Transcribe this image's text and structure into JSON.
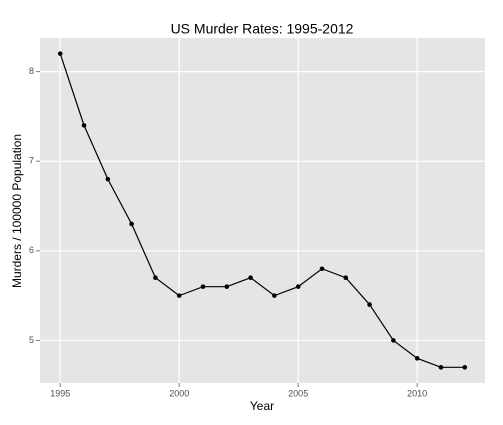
{
  "chart_data": {
    "type": "line",
    "title": "US Murder Rates: 1995-2012",
    "x_label": "Year",
    "y_label": "Murders / 100000 Population",
    "x": [
      1995,
      1996,
      1997,
      1998,
      1999,
      2000,
      2001,
      2002,
      2003,
      2004,
      2005,
      2006,
      2007,
      2008,
      2009,
      2010,
      2011,
      2012
    ],
    "values": [
      8.2,
      7.4,
      6.8,
      6.3,
      5.7,
      5.5,
      5.6,
      5.6,
      5.7,
      5.5,
      5.6,
      5.8,
      5.7,
      5.4,
      5.0,
      4.8,
      4.7,
      4.7
    ],
    "color": "#000000",
    "xlim": [
      1994.15,
      2012.85
    ],
    "xticks": [
      1995,
      2000,
      2005,
      2010
    ],
    "ylim": [
      4.525,
      8.375
    ],
    "yticks": [
      5,
      6,
      7,
      8
    ],
    "grid": true
  }
}
